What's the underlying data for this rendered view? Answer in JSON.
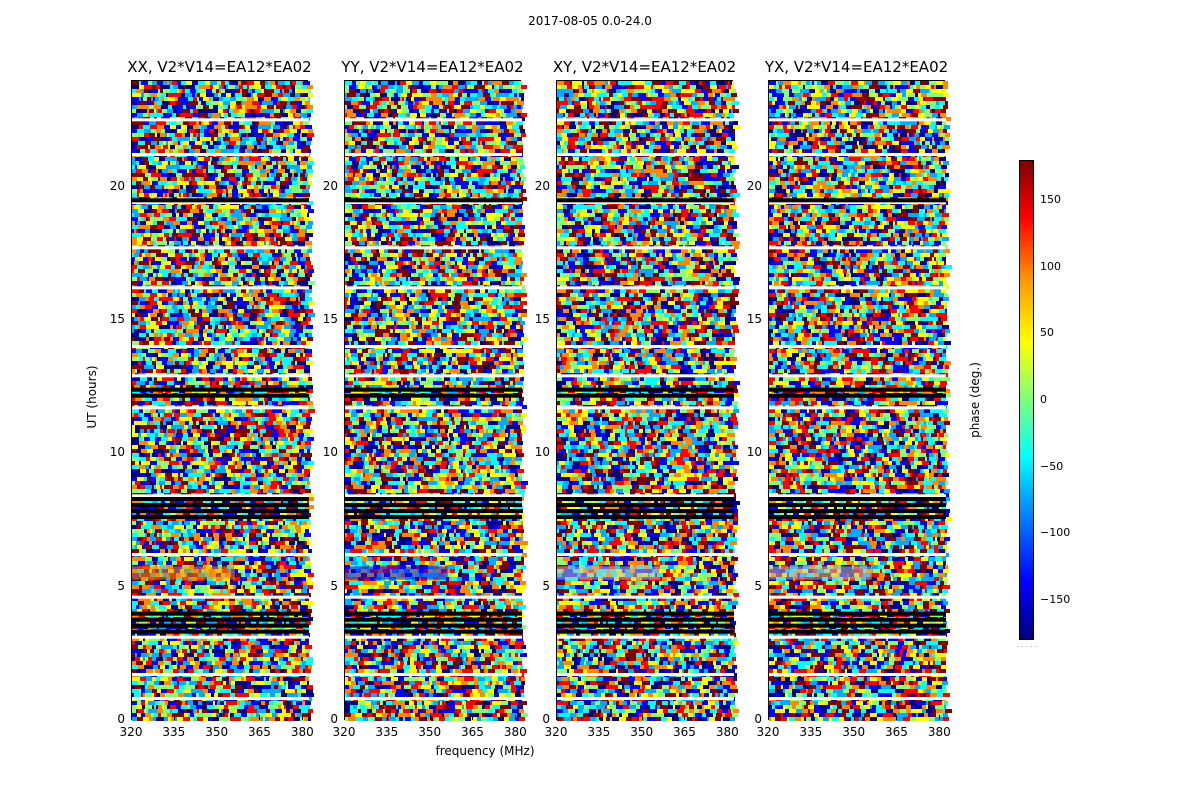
{
  "suptitle": "2017-08-05 0.0-24.0",
  "chart_data": {
    "type": "heatmap",
    "xlabel": "frequency (MHz)",
    "ylabel": "UT (hours)",
    "xlim": [
      320,
      382
    ],
    "ylim": [
      0,
      24
    ],
    "xticks": [
      "320",
      "335",
      "350",
      "365",
      "380"
    ],
    "yticks": [
      "0",
      "5",
      "10",
      "15",
      "20"
    ],
    "panels": [
      {
        "title": "XX, V2*V14=EA12*EA02",
        "hot_color": "#ff8a00"
      },
      {
        "title": "YY, V2*V14=EA12*EA02",
        "hot_color": "#0000ff"
      },
      {
        "title": "XY, V2*V14=EA12*EA02",
        "hot_color": "#bbbbbb"
      },
      {
        "title": "YX, V2*V14=EA12*EA02",
        "hot_color": "#bbbbbb"
      }
    ],
    "colorbar": {
      "label": "phase (deg.)",
      "ticks": [
        "150",
        "100",
        "50",
        "0",
        "−50",
        "−100",
        "−150"
      ],
      "tick_values": [
        150,
        100,
        50,
        0,
        -50,
        -100,
        -150
      ],
      "range": [
        -180,
        180
      ],
      "colormap": "jet"
    },
    "flagged_bands_hours": [
      [
        3.4,
        4.1
      ],
      [
        7.7,
        8.4
      ],
      [
        12.2,
        12.5
      ],
      [
        19.4,
        19.6
      ]
    ]
  }
}
